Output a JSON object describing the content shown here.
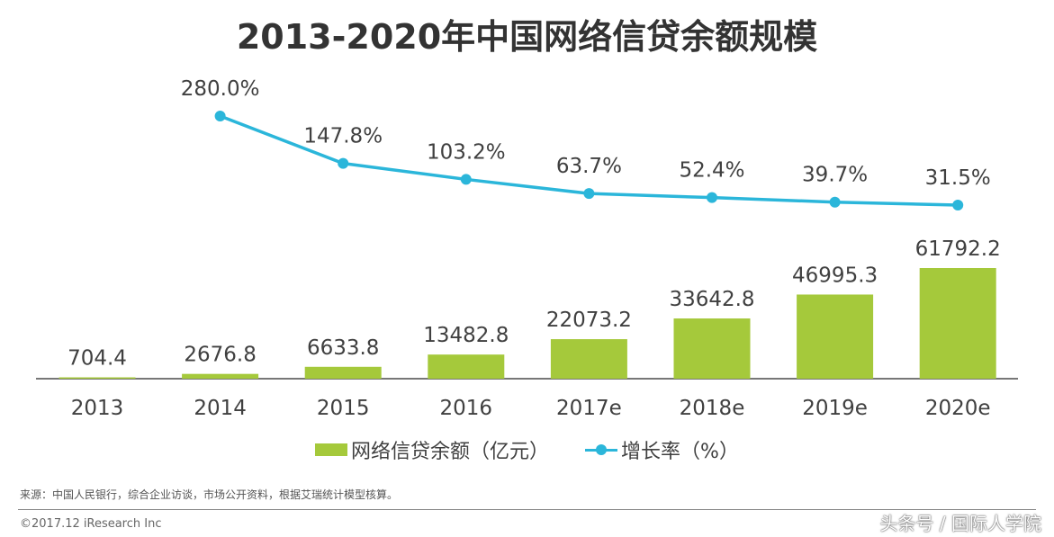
{
  "chart_data": {
    "type": "bar+line",
    "title": "2013-2020年中国网络信贷余额规模",
    "categories": [
      "2013",
      "2014",
      "2015",
      "2016",
      "2017e",
      "2018e",
      "2019e",
      "2020e"
    ],
    "series": [
      {
        "name": "网络信贷余额（亿元）",
        "type": "bar",
        "color": "#a5c93b",
        "values": [
          704.4,
          2676.8,
          6633.8,
          13482.8,
          22073.2,
          33642.8,
          46995.3,
          61792.2
        ],
        "labels": [
          "704.4",
          "2676.8",
          "6633.8",
          "13482.8",
          "22073.2",
          "33642.8",
          "46995.3",
          "61792.2"
        ]
      },
      {
        "name": "增长率（%）",
        "type": "line",
        "color": "#2bb6da",
        "values": [
          null,
          280.0,
          147.8,
          103.2,
          63.7,
          52.4,
          39.7,
          31.5
        ],
        "labels": [
          "",
          "280.0%",
          "147.8%",
          "103.2%",
          "63.7%",
          "52.4%",
          "39.7%",
          "31.5%"
        ]
      }
    ],
    "grid": false,
    "legend_placement": "bottom"
  },
  "legend": {
    "bar_label": "网络信贷余额（亿元）",
    "line_label": "增长率（%）"
  },
  "footer": {
    "source": "来源：中国人民银行，综合企业访谈，市场公开资料，根据艾瑞统计模型核算。",
    "copyright": "©2017.12 iResearch Inc",
    "watermark": "头条号 / 国际人学院"
  }
}
